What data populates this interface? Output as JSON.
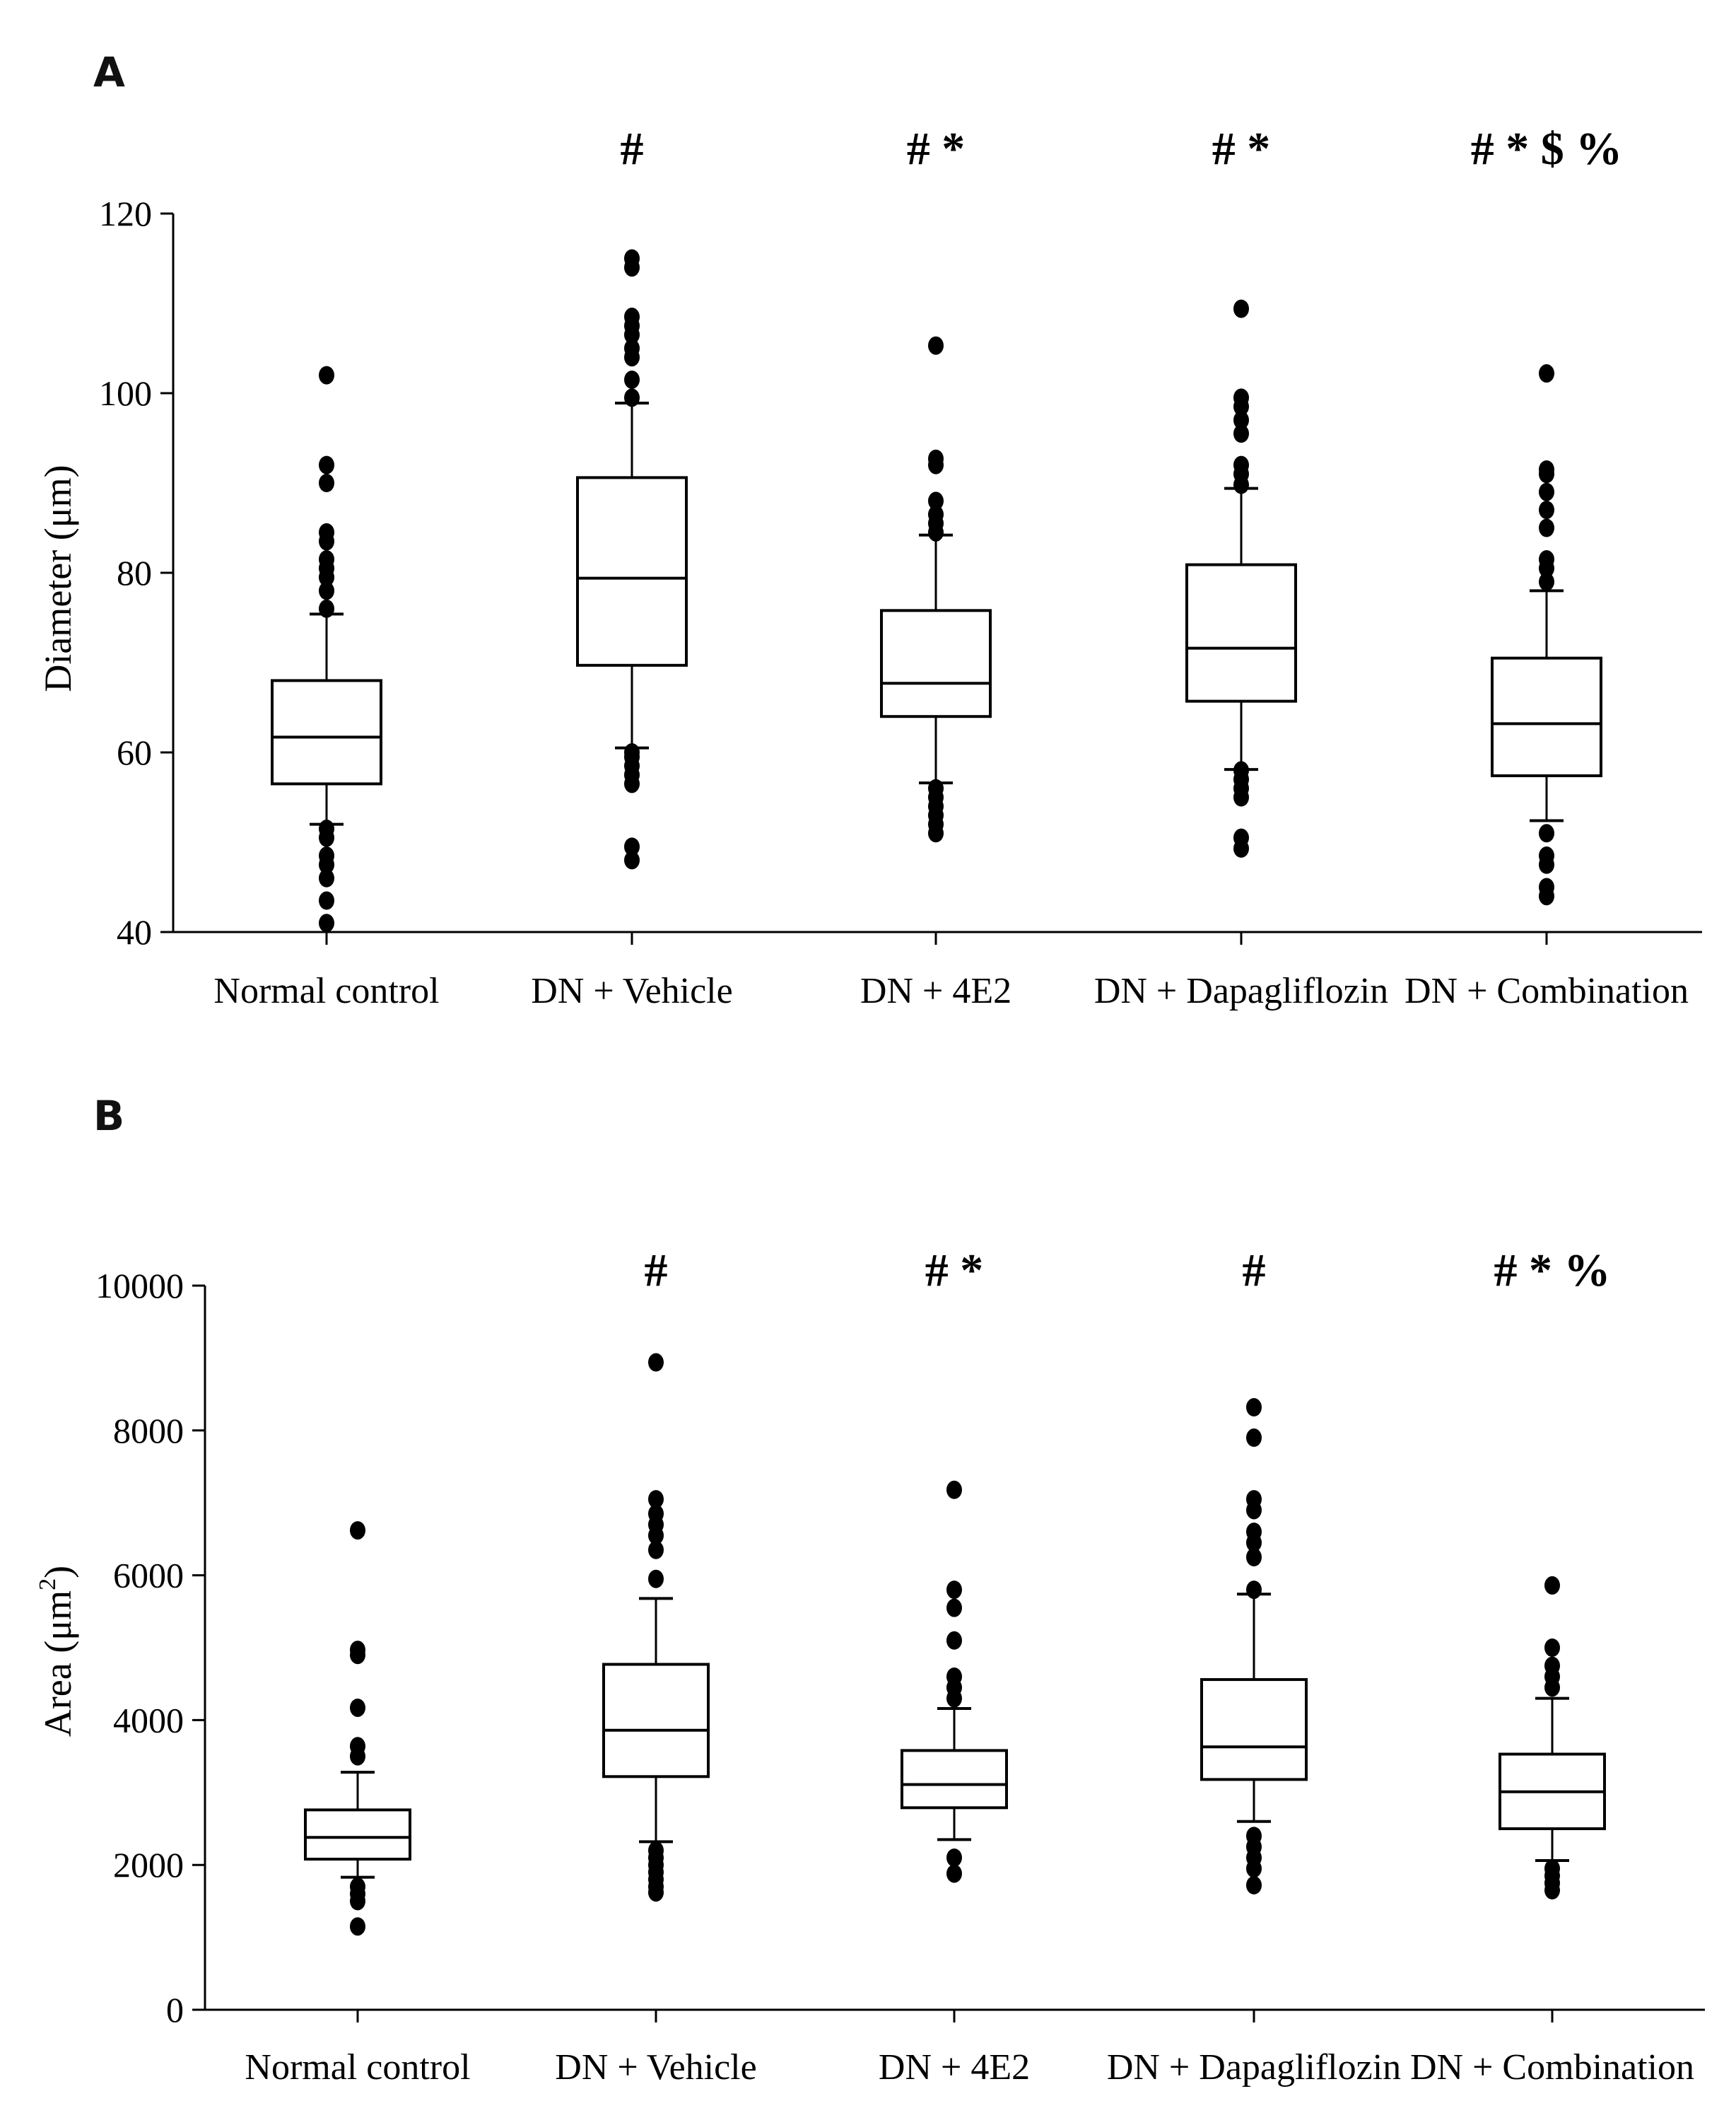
{
  "chart_data": [
    {
      "panel": "A",
      "type": "box",
      "xlabel": "",
      "ylabel": "Diameter (μm)",
      "ylim": [
        40,
        120
      ],
      "yticks": [
        40,
        60,
        80,
        100,
        120
      ],
      "categories": [
        "Normal control",
        "DN + Vehicle",
        "DN + 4E2",
        "DN + Dapagliflozin",
        "DN + Combination"
      ],
      "significance": [
        "",
        "#",
        "# *",
        "# *",
        "# * $ %"
      ],
      "boxes": [
        {
          "whisker_low": 52,
          "q1": 56.5,
          "median": 61.7,
          "q3": 68,
          "whisker_high": 75.4,
          "outliers": [
            41,
            43.5,
            46,
            47.5,
            48.5,
            50.5,
            51.5,
            76,
            78,
            79.5,
            80.5,
            81.5,
            83.5,
            84.5,
            90,
            92,
            102
          ]
        },
        {
          "whisker_low": 60.5,
          "q1": 69.7,
          "median": 79.4,
          "q3": 90.6,
          "whisker_high": 98.9,
          "outliers": [
            48,
            49.5,
            56.5,
            57.5,
            58.5,
            59.5,
            60,
            99.5,
            101.5,
            104,
            105,
            106.5,
            107.5,
            108.5,
            114,
            115
          ]
        },
        {
          "whisker_low": 56.6,
          "q1": 64,
          "median": 67.7,
          "q3": 75.8,
          "whisker_high": 84.2,
          "outliers": [
            51,
            52,
            53,
            54,
            55,
            56,
            84.5,
            85.5,
            86.5,
            88,
            92,
            92.7,
            105.3
          ]
        },
        {
          "whisker_low": 58.1,
          "q1": 65.7,
          "median": 71.6,
          "q3": 80.9,
          "whisker_high": 89.4,
          "outliers": [
            49.3,
            50.5,
            55,
            56,
            57,
            58,
            89.8,
            91,
            92,
            95.5,
            97,
            98.5,
            99.5,
            109.4
          ]
        },
        {
          "whisker_low": 52.4,
          "q1": 57.4,
          "median": 63.2,
          "q3": 70.5,
          "whisker_high": 78,
          "outliers": [
            44,
            45,
            47.5,
            48.5,
            51,
            79,
            80.5,
            81.5,
            85,
            87,
            89,
            91,
            91.5,
            102.2
          ]
        }
      ]
    },
    {
      "panel": "B",
      "type": "box",
      "xlabel": "",
      "ylabel": "Area (μm²)",
      "ylabel_main": "Area (μm",
      "ylabel_sup": "2",
      "ylabel_end": ")",
      "ylim": [
        0,
        10000
      ],
      "yticks": [
        0,
        2000,
        4000,
        6000,
        8000,
        10000
      ],
      "categories": [
        "Normal control",
        "DN + Vehicle",
        "DN + 4E2",
        "DN + Dapagliflozin",
        "DN + Combination"
      ],
      "significance": [
        "",
        "#",
        "# *",
        "#",
        "# * %"
      ],
      "boxes": [
        {
          "whisker_low": 1830,
          "q1": 2080,
          "median": 2380,
          "q3": 2760,
          "whisker_high": 3280,
          "outliers": [
            1150,
            1500,
            1600,
            1700,
            3500,
            3640,
            4170,
            4900,
            4970,
            6620
          ]
        },
        {
          "whisker_low": 2320,
          "q1": 3220,
          "median": 3860,
          "q3": 4770,
          "whisker_high": 5680,
          "outliers": [
            1620,
            1700,
            1800,
            1900,
            2000,
            2100,
            2200,
            5950,
            6350,
            6550,
            6700,
            6850,
            7050,
            8940
          ]
        },
        {
          "whisker_low": 2350,
          "q1": 2790,
          "median": 3110,
          "q3": 3580,
          "whisker_high": 4160,
          "outliers": [
            1880,
            2100,
            4300,
            4450,
            4600,
            5100,
            5550,
            5800,
            7180
          ]
        },
        {
          "whisker_low": 2600,
          "q1": 3180,
          "median": 3630,
          "q3": 4560,
          "whisker_high": 5740,
          "outliers": [
            1720,
            1950,
            2100,
            2250,
            2400,
            5800,
            6250,
            6450,
            6600,
            6900,
            7050,
            7900,
            8320
          ]
        },
        {
          "whisker_low": 2060,
          "q1": 2500,
          "median": 3010,
          "q3": 3530,
          "whisker_high": 4300,
          "outliers": [
            1650,
            1750,
            1850,
            1950,
            4450,
            4600,
            4750,
            5000,
            5860
          ]
        }
      ]
    }
  ]
}
